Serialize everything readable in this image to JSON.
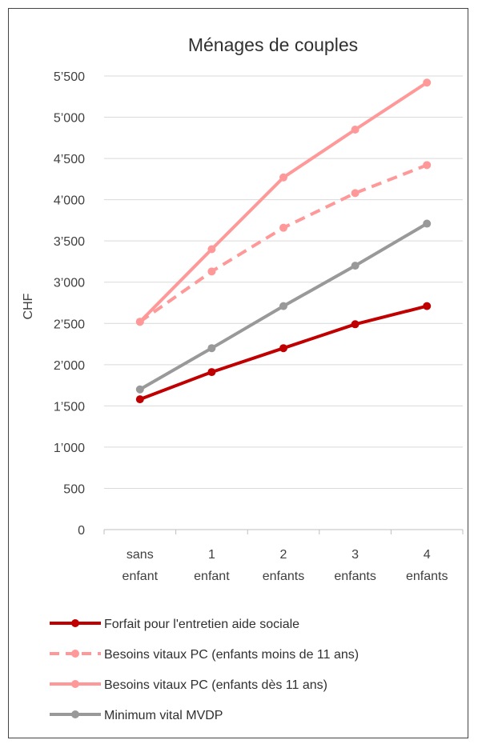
{
  "chart_data": {
    "type": "line",
    "title": "Ménages de couples",
    "ylabel": "CHF",
    "xlabel": "",
    "ylim": [
      0,
      5500
    ],
    "yticks": [
      0,
      500,
      1000,
      1500,
      2000,
      2500,
      3000,
      3500,
      4000,
      4500,
      5000,
      5500
    ],
    "ytick_labels": [
      "0",
      "500",
      "1’000",
      "1’500",
      "2’000",
      "2’500",
      "3’000",
      "3’500",
      "4’000",
      "4’500",
      "5’000",
      "5’500"
    ],
    "categories": [
      [
        "sans",
        "enfant"
      ],
      [
        "1",
        "enfant"
      ],
      [
        "2",
        "enfants"
      ],
      [
        "3",
        "enfants"
      ],
      [
        "4",
        "enfants"
      ]
    ],
    "grid": true,
    "legend_position": "bottom",
    "series": [
      {
        "name": "Forfait pour l'entretien aide sociale",
        "values": [
          1580,
          1910,
          2200,
          2490,
          2710
        ],
        "color": "#c00000",
        "dashed": false
      },
      {
        "name": "Besoins vitaux PC (enfants moins de 11 ans)",
        "values": [
          2520,
          3130,
          3660,
          4080,
          4420
        ],
        "color": "#ff9999",
        "dashed": true
      },
      {
        "name": "Besoins vitaux PC (enfants dès 11 ans)",
        "values": [
          2520,
          3400,
          4270,
          4850,
          5420
        ],
        "color": "#ff9999",
        "dashed": false
      },
      {
        "name": "Minimum vital MVDP",
        "values": [
          1700,
          2200,
          2710,
          3200,
          3710
        ],
        "color": "#999999",
        "dashed": false
      }
    ]
  }
}
